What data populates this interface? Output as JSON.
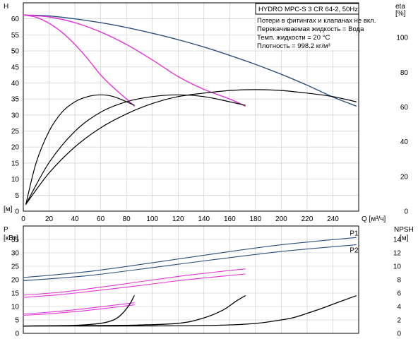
{
  "chart_data": [
    {
      "type": "line",
      "title": "HYDRO MPC-S 3 CR 64-2, 50Hz",
      "notes": [
        "Потери в фитингах и клапанах не вкл.",
        "Перекачиваемая жидкость = Вода",
        "Темп. жидкости = 20 °C",
        "Плотность = 998.2 кг/м³"
      ],
      "ylabel": "H",
      "yunit": "[м]",
      "y2label": "eta",
      "y2unit": "[%]",
      "xlabel": "Q [м³/ч]",
      "xlim": [
        0,
        260
      ],
      "ylim": [
        0,
        65
      ],
      "y2lim": [
        0,
        120
      ],
      "xticks": [
        0,
        20,
        40,
        60,
        80,
        100,
        120,
        140,
        160,
        180,
        200,
        220,
        240
      ],
      "yticks": [
        0,
        5,
        10,
        15,
        20,
        25,
        30,
        35,
        40,
        45,
        50,
        55,
        60
      ],
      "y2ticks": [
        0,
        20,
        40,
        60,
        80,
        100
      ],
      "grid": true,
      "head_series": [
        {
          "color": "#2d4f7a",
          "x": [
            0,
            20,
            40,
            60,
            80,
            100,
            120,
            140,
            160,
            180,
            200,
            220,
            240,
            258
          ],
          "y": [
            61.2,
            60.9,
            60.0,
            58.8,
            57.3,
            55.5,
            53.5,
            51.2,
            48.6,
            45.8,
            42.7,
            39.3,
            35.6,
            32.8
          ]
        },
        {
          "color": "#e335d6",
          "x": [
            0,
            20,
            40,
            60,
            80,
            100,
            120,
            140,
            160,
            172
          ],
          "y": [
            61.2,
            60.6,
            58.8,
            55.9,
            52.0,
            47.2,
            42.0,
            38.0,
            35.0,
            32.8
          ]
        },
        {
          "color": "#e335d6",
          "x": [
            0,
            10,
            20,
            30,
            40,
            50,
            60,
            70,
            80,
            86
          ],
          "y": [
            61.2,
            60.5,
            58.6,
            55.8,
            52.0,
            47.5,
            42.5,
            38.5,
            35.0,
            32.8
          ]
        }
      ],
      "eta_series": [
        {
          "color": "#000000",
          "x": [
            2,
            20,
            40,
            60,
            80,
            100,
            120,
            140,
            160,
            180,
            200,
            220,
            240,
            258
          ],
          "y": [
            4,
            22,
            37,
            48,
            56,
            62,
            66,
            68,
            69.5,
            70,
            69.5,
            68,
            66,
            63
          ]
        },
        {
          "color": "#000000",
          "x": [
            2,
            20,
            40,
            60,
            80,
            100,
            120,
            140,
            160,
            172
          ],
          "y": [
            4,
            28,
            46,
            57,
            63,
            66,
            67,
            66,
            63,
            61
          ]
        },
        {
          "color": "#000000",
          "x": [
            2,
            10,
            20,
            30,
            40,
            50,
            60,
            70,
            80,
            86
          ],
          "y": [
            4,
            28,
            46,
            57,
            63,
            66,
            67,
            66,
            63,
            61
          ]
        }
      ]
    },
    {
      "type": "line",
      "ylabel": "P",
      "yunit": "[кВт]",
      "y2label": "NPSH",
      "y2unit": "[м]",
      "xlim": [
        0,
        260
      ],
      "ylim": [
        0,
        40
      ],
      "y2lim": [
        0,
        16
      ],
      "yticks": [
        0,
        5,
        10,
        15,
        20,
        25,
        30,
        35
      ],
      "y2ticks": [
        0,
        2,
        4,
        6,
        8,
        10,
        12,
        14
      ],
      "grid": true,
      "power_series": [
        {
          "name": "P1",
          "color": "#2d4f7a",
          "x": [
            0,
            50,
            100,
            150,
            200,
            258
          ],
          "y": [
            20.8,
            23.0,
            26.3,
            29.8,
            33.0,
            35.7
          ]
        },
        {
          "name": "P2",
          "color": "#2d4f7a",
          "x": [
            0,
            50,
            100,
            150,
            200,
            258
          ],
          "y": [
            19.6,
            21.5,
            24.5,
            27.6,
            30.5,
            33.0
          ]
        },
        {
          "color": "#e335d6",
          "x": [
            0,
            30,
            60,
            90,
            120,
            150,
            172
          ],
          "y": [
            14.2,
            15.4,
            17.2,
            19.2,
            21.2,
            22.9,
            24.0
          ]
        },
        {
          "color": "#e335d6",
          "x": [
            0,
            30,
            60,
            90,
            120,
            150,
            172
          ],
          "y": [
            13.4,
            14.5,
            16.1,
            17.8,
            19.6,
            21.1,
            22.1
          ]
        },
        {
          "color": "#e335d6",
          "x": [
            0,
            20,
            40,
            60,
            86
          ],
          "y": [
            7.2,
            7.9,
            8.8,
            9.9,
            11.4
          ]
        },
        {
          "color": "#e335d6",
          "x": [
            0,
            20,
            40,
            60,
            86
          ],
          "y": [
            6.7,
            7.3,
            8.1,
            9.1,
            10.6
          ]
        }
      ],
      "npsh_series": [
        {
          "color": "#000000",
          "x": [
            0,
            40,
            60,
            70,
            76,
            82,
            86
          ],
          "y": [
            1.1,
            1.2,
            1.5,
            2.0,
            2.8,
            4.2,
            5.6
          ]
        },
        {
          "color": "#000000",
          "x": [
            0,
            80,
            120,
            140,
            155,
            165,
            172
          ],
          "y": [
            1.1,
            1.2,
            1.5,
            2.3,
            3.5,
            4.8,
            5.6
          ]
        },
        {
          "color": "#000000",
          "x": [
            0,
            150,
            200,
            225,
            245,
            258
          ],
          "y": [
            1.1,
            1.2,
            2.0,
            3.3,
            4.7,
            5.6
          ]
        }
      ]
    }
  ]
}
